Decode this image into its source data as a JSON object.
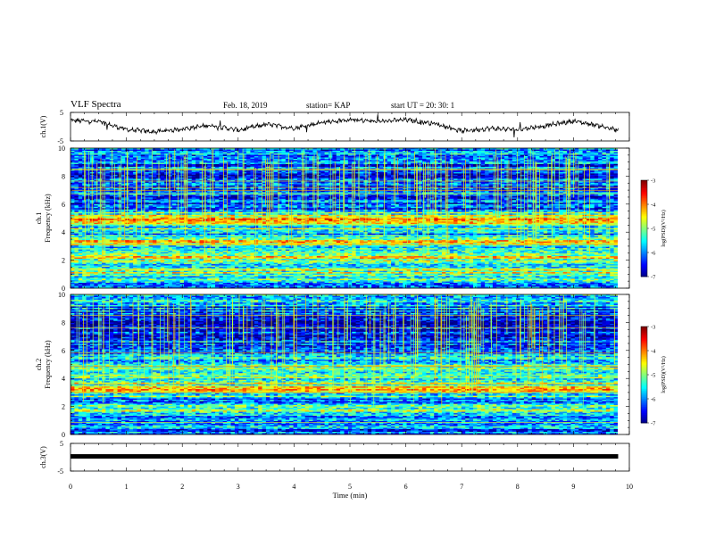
{
  "header": {
    "title": "VLF Spectra",
    "date": "Feb. 18, 2019",
    "station": "station= KAP",
    "start": "start UT =   20: 30: 1"
  },
  "chart_data": [
    {
      "type": "line",
      "name": "ch1-waveform",
      "ylabel": "ch.1(V)",
      "ylim": [
        -5,
        5
      ],
      "yticks": [
        "5",
        "-5"
      ],
      "xlim": [
        0,
        10
      ],
      "x": [
        0,
        0.5,
        1,
        1.5,
        2,
        2.5,
        3,
        3.5,
        4,
        4.5,
        5,
        5.5,
        6,
        6.5,
        7,
        7.5,
        8,
        8.5,
        9,
        9.5,
        9.8
      ],
      "values": [
        2.2,
        1.8,
        -1.0,
        -1.8,
        -0.8,
        0.5,
        -1.2,
        0.8,
        -0.5,
        1.5,
        2.4,
        1.8,
        2.4,
        1.2,
        -1.5,
        -0.6,
        -1.0,
        0.3,
        2.0,
        0.2,
        -1.4
      ]
    },
    {
      "type": "heatmap",
      "name": "ch1-spectrogram",
      "ylabel": "ch.1\nFrequency (kHz)",
      "ylim": [
        0,
        10
      ],
      "yticks": [
        "0",
        "2",
        "4",
        "6",
        "8",
        "10"
      ],
      "xlim": [
        0,
        10
      ],
      "colorbar": {
        "label": "log(PSD)(V²/Hz)",
        "range": [
          -7,
          -3
        ],
        "ticks": [
          "-3",
          "-4",
          "-5",
          "-6",
          "-7"
        ]
      },
      "frequency_profile": [
        {
          "f": 0.5,
          "log_psd": -5.8
        },
        {
          "f": 1.0,
          "log_psd": -5.0
        },
        {
          "f": 1.6,
          "log_psd": -5.3
        },
        {
          "f": 2.2,
          "log_psd": -4.6
        },
        {
          "f": 2.8,
          "log_psd": -5.6
        },
        {
          "f": 3.3,
          "log_psd": -4.2
        },
        {
          "f": 3.8,
          "log_psd": -5.7
        },
        {
          "f": 4.4,
          "log_psd": -5.1
        },
        {
          "f": 5.0,
          "log_psd": -4.3
        },
        {
          "f": 5.8,
          "log_psd": -6.5
        },
        {
          "f": 6.6,
          "log_psd": -6.1
        },
        {
          "f": 7.5,
          "log_psd": -6.4
        },
        {
          "f": 8.5,
          "log_psd": -6.2
        },
        {
          "f": 9.5,
          "log_psd": -6.0
        }
      ]
    },
    {
      "type": "heatmap",
      "name": "ch2-spectrogram",
      "ylabel": "ch.2\nFrequency (kHz)",
      "ylim": [
        0,
        10
      ],
      "yticks": [
        "0",
        "2",
        "4",
        "6",
        "8",
        "10"
      ],
      "xlim": [
        0,
        10
      ],
      "colorbar": {
        "label": "log(PSD)(V²/Hz)",
        "range": [
          -7,
          -3
        ],
        "ticks": [
          "-3",
          "-4",
          "-5",
          "-6",
          "-7"
        ]
      },
      "frequency_profile": [
        {
          "f": 0.5,
          "log_psd": -6.0
        },
        {
          "f": 1.2,
          "log_psd": -5.6
        },
        {
          "f": 1.8,
          "log_psd": -5.2
        },
        {
          "f": 2.5,
          "log_psd": -6.1
        },
        {
          "f": 3.2,
          "log_psd": -4.4
        },
        {
          "f": 3.9,
          "log_psd": -5.3
        },
        {
          "f": 4.5,
          "log_psd": -4.9
        },
        {
          "f": 5.2,
          "log_psd": -5.6
        },
        {
          "f": 6.0,
          "log_psd": -6.0
        },
        {
          "f": 7.0,
          "log_psd": -6.3
        },
        {
          "f": 8.0,
          "log_psd": -6.5
        },
        {
          "f": 9.0,
          "log_psd": -6.1
        },
        {
          "f": 9.7,
          "log_psd": -5.8
        }
      ]
    },
    {
      "type": "line",
      "name": "ch3-waveform",
      "ylabel": "ch.3(V)",
      "ylim": [
        -5,
        5
      ],
      "yticks": [
        "5",
        "-5"
      ],
      "xlim": [
        0,
        10
      ],
      "xlabel": "Time (min)",
      "xticks": [
        "0",
        "1",
        "2",
        "3",
        "4",
        "5",
        "6",
        "7",
        "8",
        "9",
        "10"
      ],
      "x": [
        0,
        9.8
      ],
      "values": [
        0.3,
        0.3
      ]
    }
  ]
}
